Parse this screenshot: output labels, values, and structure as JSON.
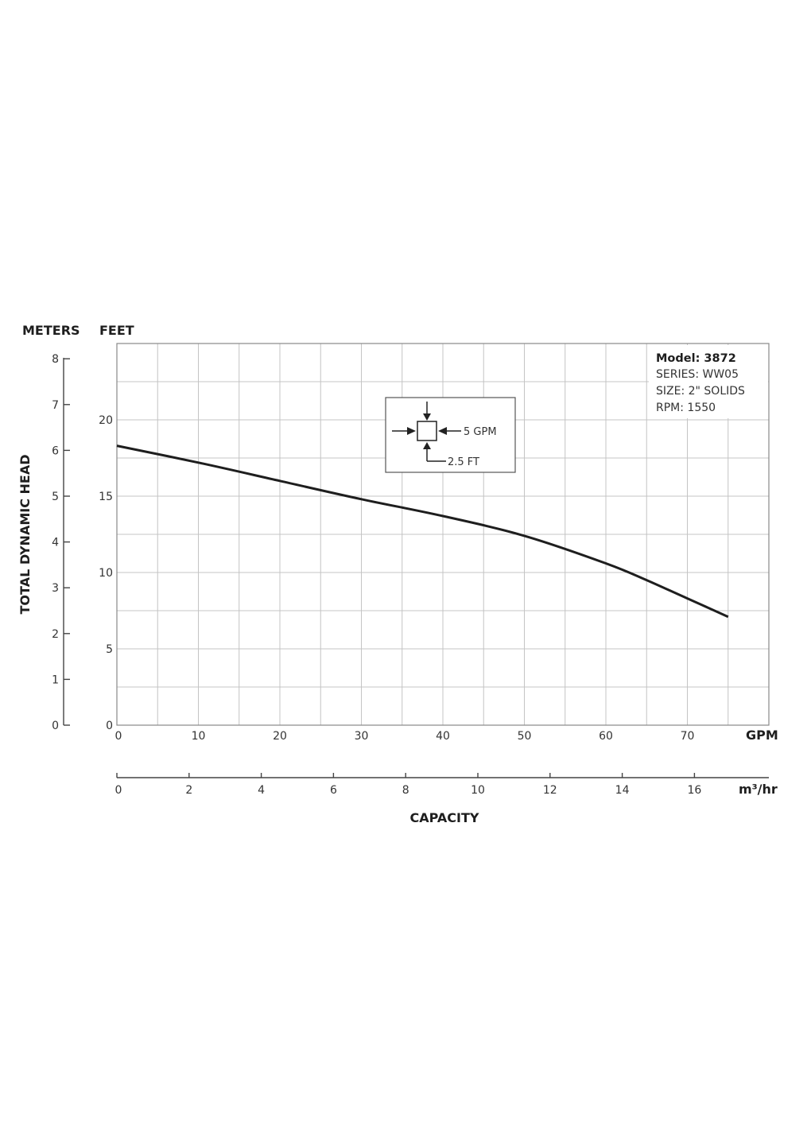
{
  "chart_data": {
    "type": "line",
    "y_left_label": "METERS",
    "y_right_label": "FEET",
    "ylabel": "TOTAL DYNAMIC HEAD",
    "xlabel": "CAPACITY",
    "x_unit_primary": "GPM",
    "x_unit_secondary": "m³/hr",
    "meters_ticks": [
      "0",
      "1",
      "2",
      "3",
      "4",
      "5",
      "6",
      "7",
      "8"
    ],
    "feet_ticks": [
      "0",
      "5",
      "10",
      "15",
      "20"
    ],
    "gpm_ticks": [
      "0",
      "10",
      "20",
      "30",
      "40",
      "50",
      "60",
      "70"
    ],
    "m3hr_ticks": [
      "0",
      "2",
      "4",
      "6",
      "8",
      "10",
      "12",
      "14",
      "16"
    ],
    "xlim": [
      0,
      80
    ],
    "ylim": [
      0,
      25
    ],
    "grid": true,
    "series": [
      {
        "x": [
          0,
          10,
          20,
          30,
          40,
          50,
          60,
          65,
          70,
          75
        ],
        "y": [
          18.3,
          17.2,
          16.0,
          14.8,
          13.7,
          12.4,
          10.6,
          9.5,
          8.3,
          7.1
        ]
      }
    ],
    "info_box": {
      "model": "Model: 3872",
      "series": "SERIES: WW05",
      "size": "SIZE: 2\" SOLIDS",
      "rpm": "RPM: 1550"
    },
    "legend_box": {
      "grid_x": "5 GPM",
      "grid_y": "2.5 FT"
    }
  }
}
